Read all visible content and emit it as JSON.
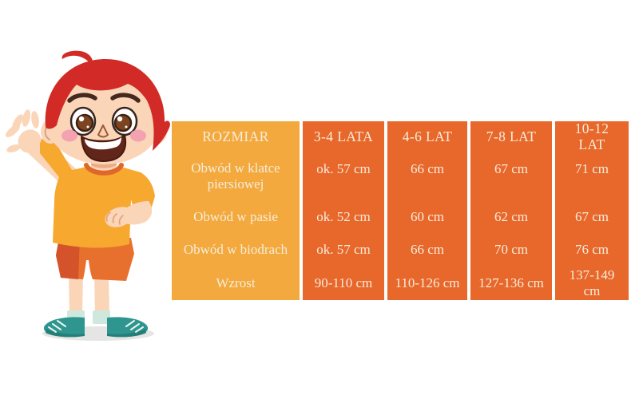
{
  "illustration": {
    "name": "waving-boy",
    "description": "Cartoon boy with red hair waving hello, wearing a yellow t-shirt, orange shorts, mint socks and teal sneakers, standing with one hand on his hip"
  },
  "size_chart": {
    "columns": [
      "ROZMIAR",
      "3-4 LATA",
      "4-6 LAT",
      "7-8 LAT",
      "10-12 LAT"
    ],
    "rows": [
      {
        "label": "Obwód w klatce piersiowej",
        "values": [
          "ok. 57 cm",
          "66 cm",
          "67 cm",
          "71 cm"
        ]
      },
      {
        "label": "Obwód w pasie",
        "values": [
          "ok. 52 cm",
          "60 cm",
          "62 cm",
          "67 cm"
        ]
      },
      {
        "label": "Obwód w biodrach",
        "values": [
          "ok. 57 cm",
          "66 cm",
          "70 cm",
          "76 cm"
        ]
      },
      {
        "label": "Wzrost",
        "values": [
          "90-110 cm",
          "110-126 cm",
          "127-136 cm",
          "137-149 cm"
        ]
      }
    ]
  },
  "colors": {
    "label_column_bg": "#F3A93D",
    "value_column_bg": "#E8672B",
    "table_text": "#F6EDDB",
    "hair": "#D22A26",
    "skin": "#FBD5B8",
    "shirt": "#F7A82F",
    "collar": "#E0672A",
    "shorts_main": "#E8702E",
    "shorts_shade": "#D5532B",
    "socks": "#CFE8DE",
    "shoes": "#2F968F",
    "shadow": "#E5E5E5",
    "blush": "#F4A2B2"
  },
  "chart_data": {
    "type": "table",
    "title": "ROZMIAR (children's clothing size chart, Polish)",
    "columns": [
      "ROZMIAR",
      "3-4 LATA",
      "4-6 LAT",
      "7-8 LAT",
      "10-12 LAT"
    ],
    "rows": [
      [
        "Obwód w klatce piersiowej",
        "ok. 57 cm",
        "66 cm",
        "67 cm",
        "71 cm"
      ],
      [
        "Obwód w pasie",
        "ok. 52 cm",
        "60 cm",
        "62 cm",
        "67 cm"
      ],
      [
        "Obwód w biodrach",
        "ok. 57 cm",
        "66 cm",
        "70 cm",
        "76 cm"
      ],
      [
        "Wzrost",
        "90-110 cm",
        "110-126 cm",
        "127-136 cm",
        "137-149 cm"
      ]
    ],
    "layout": {
      "legend": "none",
      "grid": "vertical white gaps between columns only",
      "header_column_color": "#F3A93D",
      "data_column_color": "#E8672B"
    }
  }
}
